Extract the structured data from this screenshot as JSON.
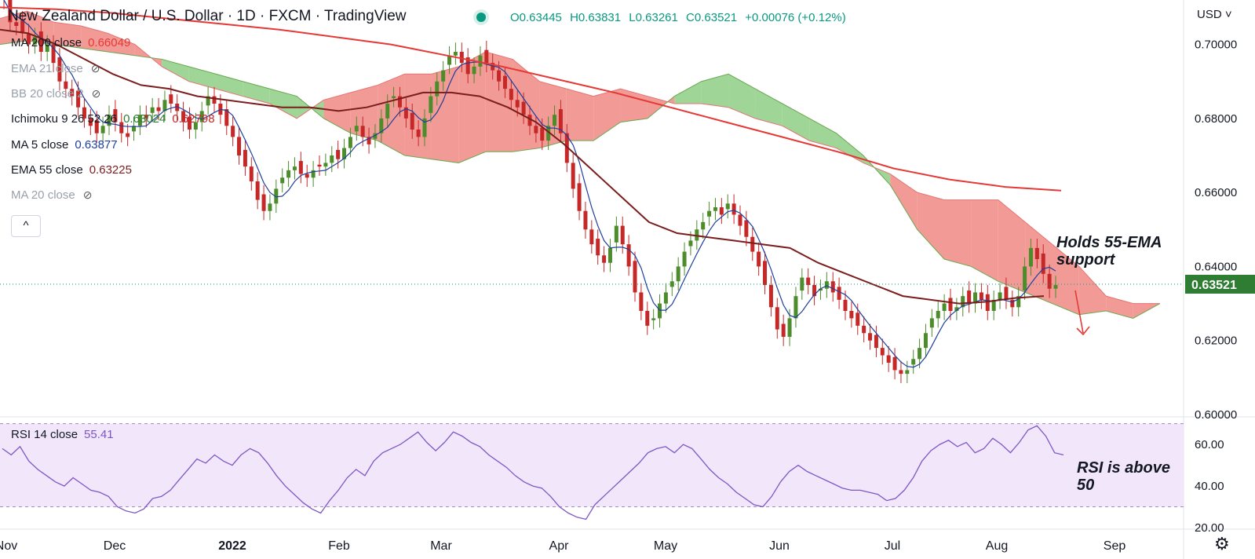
{
  "header": {
    "title": "New Zealand Dollar / U.S. Dollar · 1D · FXCM · TradingView",
    "open": "O0.63445",
    "high": "H0.63831",
    "low": "L0.63261",
    "close": "C0.63521",
    "change": "+0.00076 (+0.12%)"
  },
  "currency": "USD",
  "legend": {
    "ma200": {
      "label": "MA 200 close",
      "value": "0.66049",
      "color": "#e53935"
    },
    "ema": {
      "label": "EMA 21 close"
    },
    "bb": {
      "label": "BB 20 close 2"
    },
    "ichimoku": {
      "label": "Ichimoku 9 26 52 26",
      "value1": "0.63024",
      "value2": "0.62798"
    },
    "ma5": {
      "label": "MA 5 close",
      "value": "0.63877",
      "color": "#1e3f9c"
    },
    "ema55": {
      "label": "EMA 55 close",
      "value": "0.63225",
      "color": "#7b1d1d"
    },
    "ma20": {
      "label": "MA 20 close"
    }
  },
  "collapse_label": "^",
  "rsi_legend": {
    "label": "RSI 14 close",
    "value": "55.41"
  },
  "annotations": {
    "price": "Holds 55-EMA\nsupport",
    "rsi": "RSI is above\n50"
  },
  "price_tag": "0.63521",
  "colors": {
    "up": "#4c8c2b",
    "down": "#c62828",
    "kumo_bear": "#f08a84",
    "kumo_bull": "#8fce86",
    "rsi": "#7e57c2"
  },
  "chart_data": [
    {
      "type": "candlestick",
      "title": "New Zealand Dollar / U.S. Dollar · 1D · FXCM · TradingView",
      "x_ticks": [
        "Nov",
        "Dec",
        "2022",
        "Feb",
        "Mar",
        "Apr",
        "May",
        "Jun",
        "Jul",
        "Aug",
        "Sep"
      ],
      "y_ticks": [
        "0.60000",
        "0.62000",
        "0.64000",
        "0.66000",
        "0.68000",
        "0.70000"
      ],
      "ylim": [
        0.6,
        0.712
      ],
      "last_price": 0.63521,
      "close_series": [
        0.712,
        0.706,
        0.705,
        0.703,
        0.7,
        0.702,
        0.698,
        0.7,
        0.695,
        0.69,
        0.688,
        0.686,
        0.683,
        0.68,
        0.678,
        0.676,
        0.678,
        0.681,
        0.679,
        0.676,
        0.675,
        0.678,
        0.681,
        0.68,
        0.683,
        0.682,
        0.685,
        0.684,
        0.682,
        0.679,
        0.677,
        0.679,
        0.682,
        0.686,
        0.684,
        0.681,
        0.678,
        0.675,
        0.67,
        0.667,
        0.663,
        0.658,
        0.655,
        0.657,
        0.661,
        0.664,
        0.666,
        0.667,
        0.665,
        0.664,
        0.666,
        0.667,
        0.668,
        0.67,
        0.669,
        0.672,
        0.675,
        0.678,
        0.675,
        0.673,
        0.676,
        0.68,
        0.684,
        0.686,
        0.683,
        0.68,
        0.677,
        0.675,
        0.68,
        0.686,
        0.69,
        0.693,
        0.697,
        0.698,
        0.695,
        0.692,
        0.694,
        0.697,
        0.695,
        0.693,
        0.69,
        0.688,
        0.685,
        0.683,
        0.681,
        0.678,
        0.676,
        0.674,
        0.678,
        0.681,
        0.676,
        0.668,
        0.661,
        0.655,
        0.65,
        0.646,
        0.643,
        0.641,
        0.645,
        0.651,
        0.646,
        0.64,
        0.633,
        0.628,
        0.624,
        0.626,
        0.63,
        0.633,
        0.636,
        0.64,
        0.644,
        0.647,
        0.65,
        0.652,
        0.655,
        0.656,
        0.654,
        0.657,
        0.654,
        0.651,
        0.648,
        0.644,
        0.64,
        0.635,
        0.629,
        0.623,
        0.621,
        0.626,
        0.632,
        0.637,
        0.635,
        0.632,
        0.634,
        0.636,
        0.633,
        0.631,
        0.628,
        0.626,
        0.624,
        0.622,
        0.62,
        0.618,
        0.616,
        0.614,
        0.612,
        0.611,
        0.612,
        0.615,
        0.618,
        0.622,
        0.626,
        0.628,
        0.63,
        0.628,
        0.629,
        0.632,
        0.63,
        0.633,
        0.631,
        0.628,
        0.631,
        0.633,
        0.631,
        0.629,
        0.632,
        0.64,
        0.645,
        0.642,
        0.638,
        0.634,
        0.635
      ],
      "ma200_series": [
        0.71,
        0.7095,
        0.7085,
        0.707,
        0.7055,
        0.704,
        0.702,
        0.7,
        0.697,
        0.694,
        0.6905,
        0.687,
        0.683,
        0.679,
        0.675,
        0.671,
        0.6665,
        0.6635,
        0.6615,
        0.6605
      ],
      "ema55_series": [
        0.704,
        0.703,
        0.7,
        0.696,
        0.692,
        0.689,
        0.688,
        0.686,
        0.685,
        0.684,
        0.683,
        0.683,
        0.682,
        0.683,
        0.685,
        0.687,
        0.687,
        0.686,
        0.683,
        0.679,
        0.673,
        0.666,
        0.659,
        0.652,
        0.649,
        0.648,
        0.647,
        0.646,
        0.645,
        0.641,
        0.638,
        0.635,
        0.632,
        0.631,
        0.63,
        0.6305,
        0.6315,
        0.632
      ],
      "kumo_top": [
        0.707,
        0.709,
        0.706,
        0.705,
        0.703,
        0.7,
        0.694,
        0.69,
        0.688,
        0.686,
        0.684,
        0.68,
        0.685,
        0.687,
        0.689,
        0.692,
        0.692,
        0.694,
        0.698,
        0.696,
        0.69,
        0.688,
        0.686,
        0.688,
        0.686,
        0.684,
        0.684,
        0.683,
        0.68,
        0.678,
        0.674,
        0.672,
        0.668,
        0.665,
        0.66,
        0.658,
        0.658,
        0.658,
        0.652,
        0.646,
        0.64,
        0.632,
        0.63,
        0.63
      ],
      "kumo_bottom": [
        0.7,
        0.701,
        0.7,
        0.699,
        0.698,
        0.697,
        0.696,
        0.694,
        0.692,
        0.69,
        0.688,
        0.686,
        0.68,
        0.676,
        0.674,
        0.67,
        0.669,
        0.668,
        0.671,
        0.671,
        0.672,
        0.674,
        0.674,
        0.679,
        0.68,
        0.686,
        0.69,
        0.692,
        0.688,
        0.684,
        0.68,
        0.676,
        0.67,
        0.662,
        0.65,
        0.642,
        0.64,
        0.636,
        0.633,
        0.63,
        0.627,
        0.628,
        0.626,
        0.63
      ]
    },
    {
      "type": "line",
      "title": "RSI 14 close",
      "y_ticks": [
        "20.00",
        "40.00",
        "60.00"
      ],
      "ylim": [
        20,
        71
      ],
      "series": [
        {
          "name": "RSI 14 close",
          "values": [
            58,
            55,
            59,
            52,
            48,
            45,
            42,
            40,
            44,
            41,
            38,
            37,
            35,
            30,
            28,
            27,
            29,
            34,
            35,
            38,
            43,
            48,
            53,
            51,
            55,
            52,
            50,
            55,
            58,
            56,
            51,
            45,
            40,
            36,
            32,
            29,
            27,
            33,
            38,
            44,
            48,
            45,
            52,
            56,
            58,
            60,
            63,
            66,
            61,
            57,
            61,
            66,
            64,
            61,
            59,
            55,
            52,
            49,
            45,
            42,
            40,
            39,
            35,
            30,
            27,
            25,
            24,
            31,
            35,
            39,
            43,
            47,
            51,
            56,
            58,
            59,
            56,
            60,
            58,
            53,
            48,
            44,
            41,
            37,
            34,
            31,
            30,
            35,
            42,
            47,
            50,
            47,
            45,
            43,
            41,
            39,
            38,
            38,
            37,
            36,
            33,
            34,
            38,
            44,
            52,
            57,
            60,
            62,
            59,
            61,
            56,
            58,
            63,
            60,
            56,
            61,
            67,
            69,
            64,
            56,
            55
          ]
        }
      ],
      "last_value": 55.41,
      "band": [
        30,
        70
      ]
    }
  ]
}
